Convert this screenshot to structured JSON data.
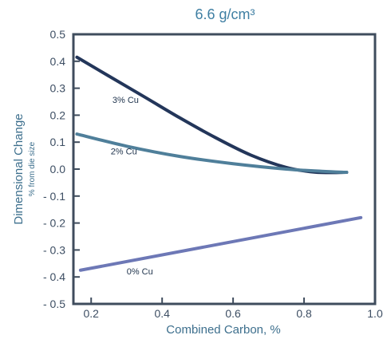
{
  "chart_data": {
    "type": "line",
    "title": "6.6 g/cm³",
    "xlabel": "Combined Carbon, %",
    "ylabel": "Dimensional Change",
    "ylabel_sub": "% from die size",
    "xlim": [
      0.15,
      1.0
    ],
    "ylim": [
      -0.5,
      0.5
    ],
    "x_ticks": [
      0.2,
      0.4,
      0.6,
      0.8,
      1.0
    ],
    "x_tick_labels": [
      "0.2",
      "0.4",
      "0.6",
      "0.8",
      "1.0"
    ],
    "y_ticks": [
      0.5,
      0.4,
      0.3,
      0.2,
      0.1,
      0.0,
      -0.1,
      -0.2,
      -0.3,
      -0.4,
      -0.5
    ],
    "y_tick_labels": [
      "0.5",
      "0.4",
      "0.3",
      "0.2",
      "0.1",
      "0.0",
      "- 0.1",
      "- 0.2",
      "- 0.3",
      "- 0.4",
      "- 0.5"
    ],
    "grid": false,
    "series": [
      {
        "name": "3% Cu",
        "color": "#23365a",
        "x": [
          0.16,
          0.25,
          0.35,
          0.45,
          0.55,
          0.65,
          0.75,
          0.82,
          0.87,
          0.92
        ],
        "y": [
          0.415,
          0.345,
          0.268,
          0.19,
          0.117,
          0.052,
          0.006,
          -0.01,
          -0.013,
          -0.012
        ]
      },
      {
        "name": "2% Cu",
        "color": "#4f7f9a",
        "x": [
          0.16,
          0.3,
          0.45,
          0.6,
          0.75,
          0.85,
          0.92
        ],
        "y": [
          0.13,
          0.085,
          0.047,
          0.02,
          0.0,
          -0.008,
          -0.012
        ]
      },
      {
        "name": "0% Cu",
        "color": "#6d78b6",
        "x": [
          0.17,
          0.96
        ],
        "y": [
          -0.375,
          -0.18
        ]
      }
    ],
    "labels": [
      {
        "series": "3% Cu",
        "text": "3% Cu",
        "x": 0.26,
        "y": 0.245
      },
      {
        "series": "2% Cu",
        "text": "2% Cu",
        "x": 0.255,
        "y": 0.055
      },
      {
        "series": "0% Cu",
        "text": "0% Cu",
        "x": 0.3,
        "y": -0.39
      }
    ]
  }
}
